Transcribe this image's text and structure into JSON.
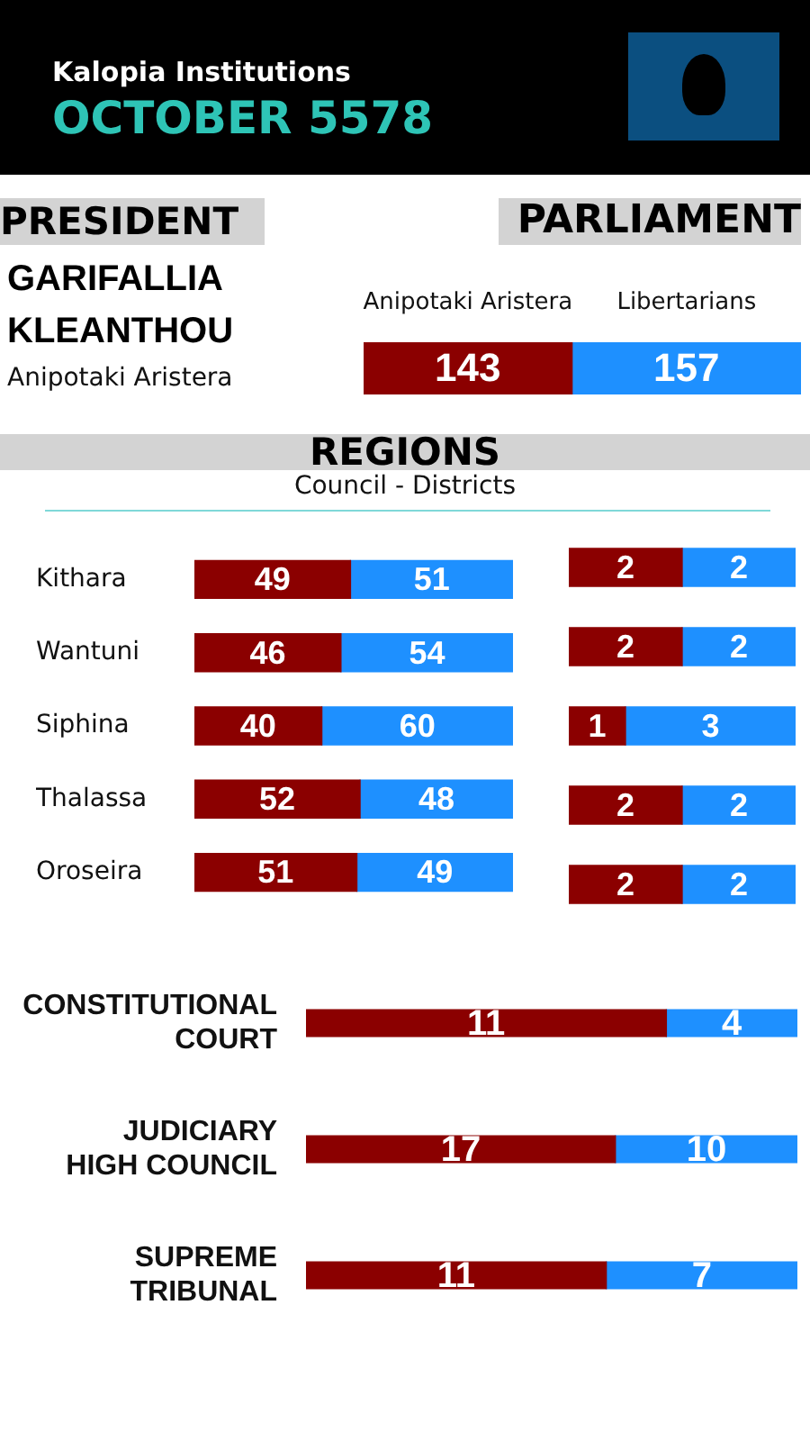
{
  "chart_data": [
    {
      "type": "other",
      "title": "Kalopia Institutions",
      "subtitle": "OCTOBER 5578",
      "annotations": [
        "PRESIDENT",
        "GARIFALLIA KLEANTHOU",
        "Anipotaki Aristera"
      ]
    },
    {
      "type": "bar",
      "orientation": "horizontal",
      "stacked": true,
      "title": "PARLIAMENT",
      "categories": [
        null
      ],
      "series": [
        {
          "name": "Anipotaki Aristera",
          "color": "#8b0000",
          "values": [
            143
          ]
        },
        {
          "name": "Libertarians",
          "color": "#1e90ff",
          "values": [
            157
          ]
        }
      ],
      "data_labels": true,
      "tick_labels": false
    },
    {
      "type": "bar",
      "orientation": "horizontal",
      "stacked": true,
      "title": "REGIONS",
      "subtitle": "Council - Districts",
      "categories": [
        "Kithara",
        "Wantuni",
        "Siphina",
        "Thalassa",
        "Oroseira"
      ],
      "series": [
        {
          "color": "#8b0000",
          "values": [
            49,
            46,
            40,
            52,
            51
          ]
        },
        {
          "color": "#1e90ff",
          "values": [
            51,
            54,
            60,
            48,
            49
          ]
        }
      ],
      "data_labels": true,
      "tick_labels": "y"
    },
    {
      "type": "bar",
      "orientation": "horizontal",
      "stacked": true,
      "categories": [
        null,
        null,
        null,
        null,
        null
      ],
      "series": [
        {
          "color": "#8b0000",
          "values": [
            2,
            2,
            1,
            2,
            2
          ]
        },
        {
          "color": "#1e90ff",
          "values": [
            2,
            2,
            3,
            2,
            2
          ]
        }
      ],
      "data_labels": true,
      "tick_labels": false
    },
    {
      "type": "bar",
      "orientation": "horizontal",
      "stacked": true,
      "categories": [
        "CONSTITUTIONAL COURT"
      ],
      "series": [
        {
          "color": "#8b0000",
          "values": [
            11
          ]
        },
        {
          "color": "#1e90ff",
          "values": [
            4
          ]
        }
      ],
      "data_labels": true,
      "tick_labels": "y"
    },
    {
      "type": "bar",
      "orientation": "horizontal",
      "stacked": true,
      "categories": [
        "JUDICIARY HIGH COUNCIL"
      ],
      "series": [
        {
          "color": "#8b0000",
          "values": [
            17
          ]
        },
        {
          "color": "#1e90ff",
          "values": [
            10
          ]
        }
      ],
      "data_labels": true,
      "tick_labels": "y"
    },
    {
      "type": "bar",
      "orientation": "horizontal",
      "stacked": true,
      "categories": [
        "SUPREME TRIBUNAL"
      ],
      "series": [
        {
          "color": "#8b0000",
          "values": [
            11
          ]
        },
        {
          "color": "#1e90ff",
          "values": [
            7
          ]
        }
      ],
      "data_labels": true,
      "tick_labels": "y"
    }
  ]
}
